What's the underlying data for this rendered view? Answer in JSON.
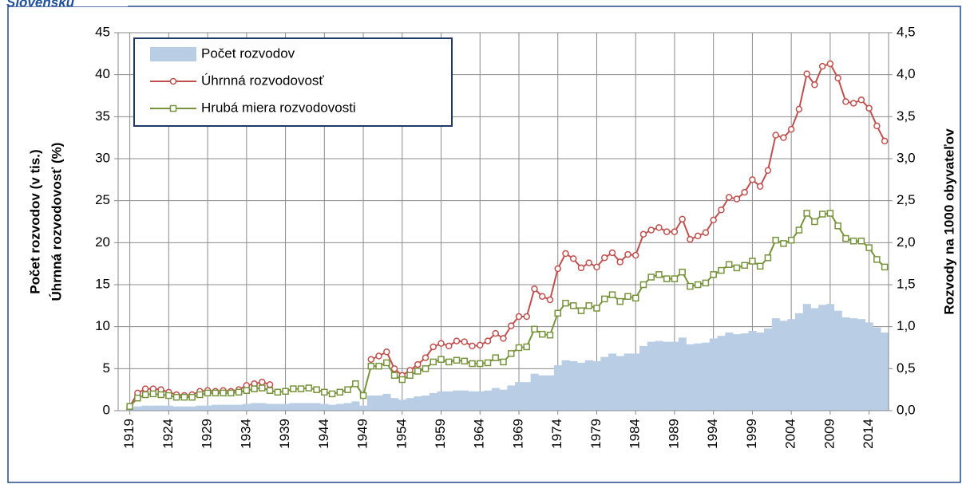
{
  "chart_data": {
    "type": "bar",
    "title": "Slovensku",
    "y_label_lines": [
      "Počet rozvodov (v tis.)",
      "Úhrnná rozvodovosť (%)"
    ],
    "y2_label": "Rozvody na 1000 obyvateľov",
    "x": [
      1919,
      1920,
      1921,
      1922,
      1923,
      1924,
      1925,
      1926,
      1927,
      1928,
      1929,
      1930,
      1931,
      1932,
      1933,
      1934,
      1935,
      1936,
      1937,
      1938,
      1939,
      1940,
      1941,
      1942,
      1943,
      1944,
      1945,
      1946,
      1947,
      1948,
      1949,
      1950,
      1951,
      1952,
      1953,
      1954,
      1955,
      1956,
      1957,
      1958,
      1959,
      1960,
      1961,
      1962,
      1963,
      1964,
      1965,
      1966,
      1967,
      1968,
      1969,
      1970,
      1971,
      1972,
      1973,
      1974,
      1975,
      1976,
      1977,
      1978,
      1979,
      1980,
      1981,
      1982,
      1983,
      1984,
      1985,
      1986,
      1987,
      1988,
      1989,
      1990,
      1991,
      1992,
      1993,
      1994,
      1995,
      1996,
      1997,
      1998,
      1999,
      2000,
      2001,
      2002,
      2003,
      2004,
      2005,
      2006,
      2007,
      2008,
      2009,
      2010,
      2011,
      2012,
      2013,
      2014,
      2015,
      2016
    ],
    "xlim": [
      1917.5,
      2016.5
    ],
    "xticks": [
      1919,
      1924,
      1929,
      1934,
      1939,
      1944,
      1949,
      1954,
      1959,
      1964,
      1969,
      1974,
      1979,
      1984,
      1989,
      1994,
      1999,
      2004,
      2009,
      2014
    ],
    "ylim": [
      0,
      45
    ],
    "yticks": [
      0,
      5,
      10,
      15,
      20,
      25,
      30,
      35,
      40,
      45
    ],
    "y2lim": [
      0,
      4.5
    ],
    "y2ticks": [
      {
        "value": 0,
        "label": "0,0"
      },
      {
        "value": 0.5,
        "label": "0,5"
      },
      {
        "value": 1,
        "label": "1,0"
      },
      {
        "value": 1.5,
        "label": "1,5"
      },
      {
        "value": 2,
        "label": "2,0"
      },
      {
        "value": 2.5,
        "label": "2,5"
      },
      {
        "value": 3,
        "label": "3,0"
      },
      {
        "value": 3.5,
        "label": "3,5"
      },
      {
        "value": 4,
        "label": "4,0"
      },
      {
        "value": 4.5,
        "label": "4,5"
      }
    ],
    "grid": true,
    "legend": "upper left",
    "series": [
      {
        "name": "Počet rozvodov",
        "type": "bar",
        "color": "#b9cde5",
        "values": [
          0.3,
          0.5,
          0.6,
          0.6,
          0.6,
          0.6,
          0.5,
          0.5,
          0.5,
          0.6,
          0.6,
          0.7,
          0.7,
          0.7,
          0.7,
          0.8,
          0.9,
          0.9,
          0.8,
          0.8,
          0.8,
          0.9,
          0.9,
          0.9,
          0.9,
          0.8,
          0.7,
          0.8,
          0.9,
          1.1,
          0.6,
          1.8,
          1.8,
          2.0,
          1.5,
          1.3,
          1.5,
          1.7,
          1.8,
          2.1,
          2.3,
          2.3,
          2.4,
          2.4,
          2.3,
          2.3,
          2.4,
          2.7,
          2.5,
          3.0,
          3.4,
          3.4,
          4.4,
          4.2,
          4.2,
          5.4,
          6.0,
          5.9,
          5.7,
          6.0,
          5.9,
          6.4,
          6.8,
          6.5,
          6.8,
          6.8,
          7.7,
          8.2,
          8.3,
          8.2,
          8.2,
          8.7,
          7.9,
          8.0,
          8.1,
          8.6,
          8.9,
          9.3,
          9.1,
          9.2,
          9.5,
          9.3,
          9.8,
          11.0,
          10.7,
          10.9,
          11.6,
          12.7,
          12.2,
          12.6,
          12.7,
          11.9,
          11.1,
          11.0,
          10.9,
          10.5,
          9.9,
          9.3
        ]
      },
      {
        "name": "Úhrnná rozvodovosť",
        "type": "line",
        "marker": "circle",
        "color": "#c0504d",
        "values": [
          0.5,
          2.1,
          2.6,
          2.6,
          2.5,
          2.2,
          1.9,
          1.8,
          1.9,
          2.3,
          2.4,
          2.3,
          2.4,
          2.3,
          2.5,
          3.0,
          3.2,
          3.4,
          3.1,
          null,
          null,
          null,
          null,
          null,
          null,
          null,
          null,
          null,
          null,
          null,
          null,
          6.1,
          6.5,
          7.0,
          5.0,
          4.2,
          4.8,
          5.5,
          6.3,
          7.6,
          8.0,
          7.7,
          8.3,
          8.2,
          7.7,
          7.8,
          8.3,
          9.2,
          8.6,
          10.1,
          11.2,
          11.2,
          14.5,
          13.6,
          13.2,
          16.9,
          18.7,
          18.1,
          17.0,
          17.6,
          17.1,
          18.2,
          18.8,
          17.7,
          18.6,
          18.5,
          21.0,
          21.5,
          21.8,
          21.3,
          21.3,
          22.8,
          20.4,
          20.8,
          21.2,
          22.7,
          23.9,
          25.4,
          25.2,
          26.0,
          27.5,
          26.7,
          28.6,
          32.8,
          32.5,
          33.5,
          35.9,
          40.1,
          38.8,
          41.0,
          41.3,
          39.6,
          36.8,
          36.6,
          37.0,
          36.0,
          33.9,
          32.1
        ]
      },
      {
        "name": "Hrubá miera rozvodovosti",
        "type": "line",
        "marker": "square",
        "color": "#77933c",
        "axis": "y2",
        "values": [
          0.05,
          0.15,
          0.19,
          0.2,
          0.19,
          0.18,
          0.16,
          0.16,
          0.16,
          0.19,
          0.21,
          0.21,
          0.21,
          0.21,
          0.22,
          0.24,
          0.26,
          0.27,
          0.24,
          0.22,
          0.23,
          0.26,
          0.26,
          0.27,
          0.25,
          0.22,
          0.2,
          0.22,
          0.25,
          0.32,
          0.18,
          0.53,
          0.53,
          0.57,
          0.42,
          0.37,
          0.42,
          0.47,
          0.5,
          0.58,
          0.61,
          0.58,
          0.6,
          0.59,
          0.56,
          0.56,
          0.57,
          0.63,
          0.58,
          0.68,
          0.75,
          0.76,
          0.97,
          0.91,
          0.9,
          1.16,
          1.28,
          1.25,
          1.19,
          1.25,
          1.22,
          1.33,
          1.38,
          1.3,
          1.36,
          1.34,
          1.5,
          1.59,
          1.62,
          1.57,
          1.57,
          1.65,
          1.48,
          1.5,
          1.52,
          1.62,
          1.67,
          1.74,
          1.7,
          1.73,
          1.78,
          1.72,
          1.82,
          2.03,
          1.99,
          2.03,
          2.15,
          2.35,
          2.25,
          2.34,
          2.35,
          2.2,
          2.05,
          2.02,
          2.02,
          1.94,
          1.8,
          1.71
        ]
      }
    ]
  }
}
